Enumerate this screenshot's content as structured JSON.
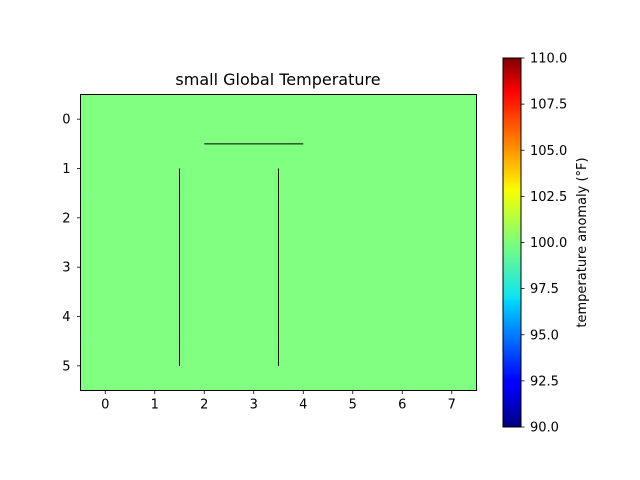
{
  "chart_data": {
    "type": "heatmap",
    "title": "small Global Temperature",
    "xlabel": "",
    "ylabel": "",
    "x_ticks": [
      0,
      1,
      2,
      3,
      4,
      5,
      6,
      7
    ],
    "y_ticks": [
      0,
      1,
      2,
      3,
      4,
      5
    ],
    "xlim": [
      -0.5,
      7.5
    ],
    "ylim": [
      5.5,
      -0.5
    ],
    "grid": false,
    "values": [
      [
        100,
        100,
        100,
        100,
        100,
        100,
        100,
        100
      ],
      [
        100,
        100,
        100,
        100,
        100,
        100,
        100,
        100
      ],
      [
        100,
        100,
        100,
        100,
        100,
        100,
        100,
        100
      ],
      [
        100,
        100,
        100,
        100,
        100,
        100,
        100,
        100
      ],
      [
        100,
        100,
        100,
        100,
        100,
        100,
        100,
        100
      ],
      [
        100,
        100,
        100,
        100,
        100,
        100,
        100,
        100
      ]
    ],
    "overlay_segments": [
      {
        "x": [
          2,
          4
        ],
        "y": [
          0.5,
          0.5
        ]
      },
      {
        "x": [
          1.5,
          1.5
        ],
        "y": [
          1,
          5
        ]
      },
      {
        "x": [
          3.5,
          3.5
        ],
        "y": [
          1,
          5
        ]
      }
    ],
    "colorbar": {
      "label": "temperature anomaly (°F)",
      "colormap": "jet",
      "range": [
        90.0,
        110.0
      ],
      "ticks": [
        "90.0",
        "92.5",
        "95.0",
        "97.5",
        "100.0",
        "102.5",
        "105.0",
        "107.5",
        "110.0"
      ]
    }
  }
}
